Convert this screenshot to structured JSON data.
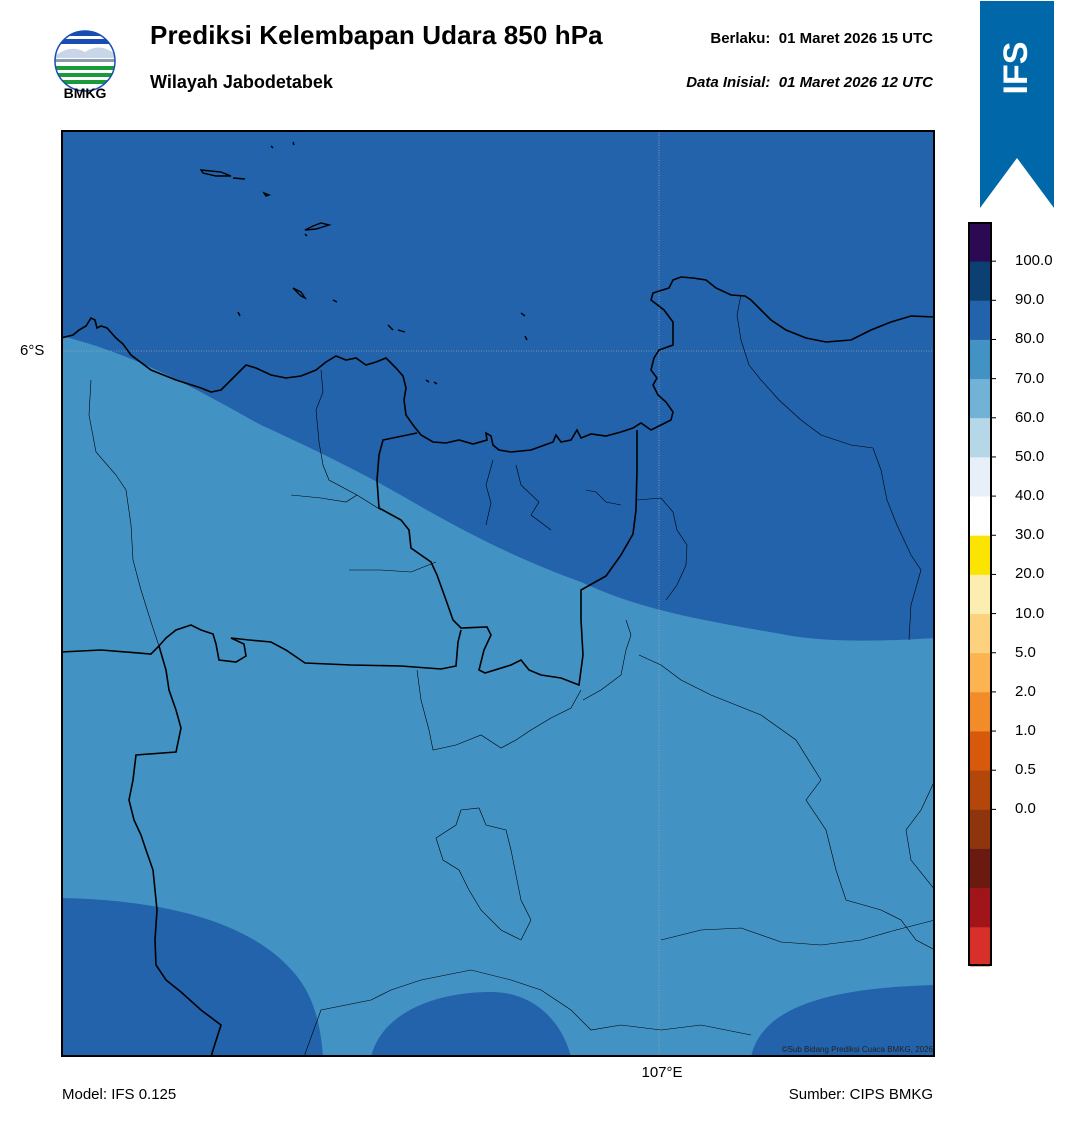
{
  "header": {
    "logo_text": "BMKG",
    "title": "Prediksi Kelembapan Udara 850 hPa",
    "subtitle": "Wilayah Jabodetabek",
    "valid_label": "Berlaku:",
    "valid_value": "01 Maret 2026 15 UTC",
    "initial_label": "Data Inisial:",
    "initial_value": "01 Maret 2026 12 UTC"
  },
  "ribbon": {
    "text": "IFS",
    "color": "#0068a8"
  },
  "map": {
    "lat_label": "6°S",
    "lon_label": "107°E",
    "copyright": "©Sub Bidang Prediksi Cuaca BMKG, 2026",
    "colors": {
      "band_80_90": "#2263ac",
      "band_70_80": "#4392c4"
    }
  },
  "colorbar": {
    "labels": [
      "100.0",
      "90.0",
      "80.0",
      "70.0",
      "60.0",
      "50.0",
      "40.0",
      "30.0",
      "20.0",
      "10.0",
      "5.0",
      "2.0",
      "1.0",
      "0.5",
      "0.0"
    ],
    "colors": [
      "#d7302a",
      "#a11419",
      "#6a1a0e",
      "#8e350e",
      "#b3470b",
      "#d8590b",
      "#f18c28",
      "#fbb44f",
      "#fdd27f",
      "#fceeb0",
      "#fbe500",
      "#ffffff",
      "#e7eff8",
      "#b6d7e8",
      "#72b2d6",
      "#4392c4",
      "#2263ac",
      "#0c3f72",
      "#2c0a53"
    ]
  },
  "footer": {
    "model": "Model: IFS 0.125",
    "source": "Sumber: CIPS BMKG"
  }
}
